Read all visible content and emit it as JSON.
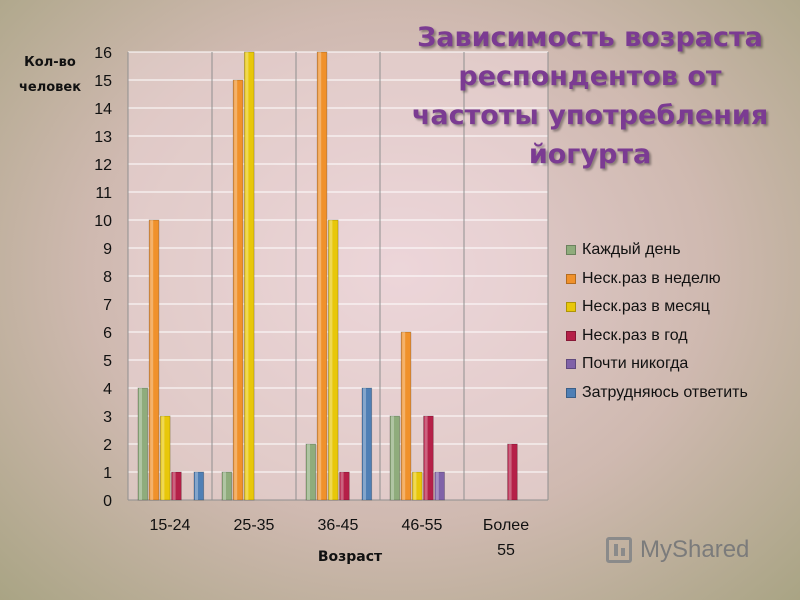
{
  "chart_data": {
    "type": "bar",
    "title": "Зависимость возраста респондентов от частоты употребления йогурта",
    "ylabel": "Кол-во человек",
    "xlabel": "Возраст",
    "ylim": [
      0,
      16
    ],
    "yticks": [
      "0",
      "1",
      "2",
      "3",
      "4",
      "5",
      "6",
      "7",
      "8",
      "9",
      "10",
      "11",
      "12",
      "13",
      "14",
      "15",
      "16"
    ],
    "categories": [
      "15-24",
      "25-35",
      "36-45",
      "46-55",
      "Более 55"
    ],
    "series": [
      {
        "name": "Каждый день",
        "color": "#8fac7c",
        "values": [
          4,
          1,
          2,
          3,
          0
        ]
      },
      {
        "name": "Неск.раз в неделю",
        "color": "#f0912b",
        "values": [
          10,
          15,
          16,
          6,
          0
        ]
      },
      {
        "name": "Неск.раз в месяц",
        "color": "#e8c70a",
        "values": [
          3,
          16,
          10,
          1,
          0
        ]
      },
      {
        "name": "Неск.раз в год",
        "color": "#b52048",
        "values": [
          1,
          0,
          1,
          3,
          2
        ]
      },
      {
        "name": "Почти никогда",
        "color": "#8062a8",
        "values": [
          0,
          0,
          0,
          1,
          0
        ]
      },
      {
        "name": "Затрудняюсь ответить",
        "color": "#4f7fb5",
        "values": [
          1,
          0,
          4,
          0,
          0
        ]
      }
    ],
    "grid": true,
    "legend_position": "right"
  },
  "watermark": {
    "text": "MyShared",
    "icon": "chart-logo-icon"
  }
}
